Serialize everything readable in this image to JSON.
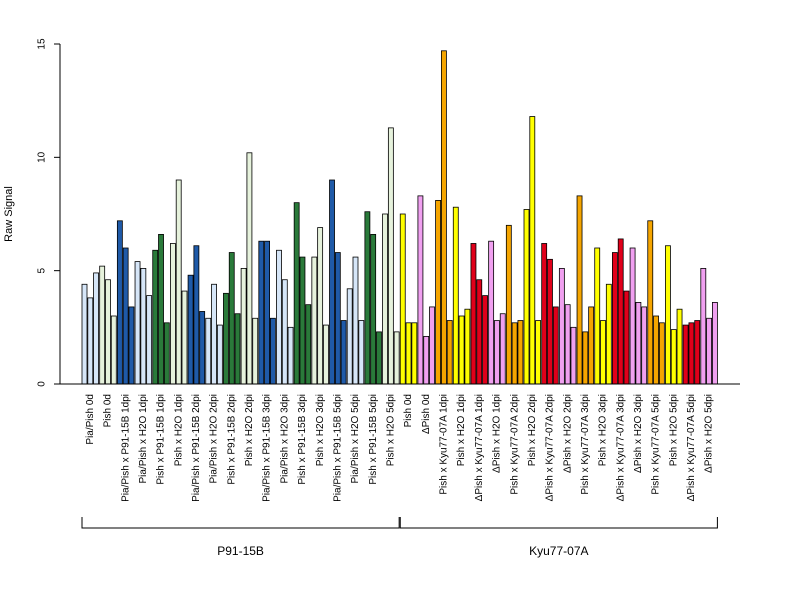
{
  "chart_data": {
    "type": "bar",
    "ylabel": "Raw Signal",
    "ylim": [
      0,
      15
    ],
    "yticks": [
      0,
      5,
      10,
      15
    ],
    "bars_per_category": 3,
    "categories": [
      {
        "label": "Pia/Pish 0d",
        "color": "#d6e6f8",
        "values": [
          4.4,
          3.8,
          4.9
        ]
      },
      {
        "label": "Pish 0d",
        "color": "#e6f2dc",
        "values": [
          5.2,
          4.6,
          3.0
        ]
      },
      {
        "label": "Pia/Pish x P91-15B 1dpi",
        "color": "#1f5aa8",
        "values": [
          7.2,
          6.0,
          3.4
        ]
      },
      {
        "label": "Pia/Pish x H2O 1dpi",
        "color": "#d6e6f8",
        "values": [
          5.4,
          5.1,
          3.9
        ]
      },
      {
        "label": "Pish x P91-15B 1dpi",
        "color": "#2a7a3a",
        "values": [
          5.9,
          6.6,
          2.7
        ]
      },
      {
        "label": "Pish x H2O 1dpi",
        "color": "#e6f2dc",
        "values": [
          6.2,
          9.0,
          4.1
        ]
      },
      {
        "label": "Pia/Pish x P91-15B 2dpi",
        "color": "#1f5aa8",
        "values": [
          4.8,
          6.1,
          3.2
        ]
      },
      {
        "label": "Pia/Pish x H2O 2dpi",
        "color": "#d6e6f8",
        "values": [
          2.9,
          4.4,
          2.6
        ]
      },
      {
        "label": "Pish x P91-15B 2dpi",
        "color": "#2a7a3a",
        "values": [
          4.0,
          5.8,
          3.1
        ]
      },
      {
        "label": "Pish x H2O 2dpi",
        "color": "#e6f2dc",
        "values": [
          5.1,
          10.2,
          2.9
        ]
      },
      {
        "label": "Pia/Pish x P91-15B 3dpi",
        "color": "#1f5aa8",
        "values": [
          6.3,
          6.3,
          2.9
        ]
      },
      {
        "label": "Pia/Pish x H2O 3dpi",
        "color": "#d6e6f8",
        "values": [
          5.9,
          4.6,
          2.5
        ]
      },
      {
        "label": "Pish x P91-15B 3dpi",
        "color": "#2a7a3a",
        "values": [
          8.0,
          5.6,
          3.5
        ]
      },
      {
        "label": "Pish x H2O 3dpi",
        "color": "#e6f2dc",
        "values": [
          5.6,
          6.9,
          2.6
        ]
      },
      {
        "label": "Pia/Pish x P91-15B 5dpi",
        "color": "#1f5aa8",
        "values": [
          9.0,
          5.8,
          2.8
        ]
      },
      {
        "label": "Pia/Pish x H2O 5dpi",
        "color": "#d6e6f8",
        "values": [
          4.2,
          5.6,
          2.8
        ]
      },
      {
        "label": "Pish x P91-15B 5dpi",
        "color": "#2a7a3a",
        "values": [
          7.6,
          6.6,
          2.3
        ]
      },
      {
        "label": "Pish x H2O 5dpi",
        "color": "#e6f2dc",
        "values": [
          7.5,
          11.3,
          2.3
        ]
      },
      {
        "label": "Pish 0d",
        "color": "#ffff00",
        "values": [
          7.5,
          2.7,
          2.7
        ]
      },
      {
        "label": "ΔPish 0d",
        "color": "#f0a0f0",
        "values": [
          8.3,
          2.1,
          3.4
        ]
      },
      {
        "label": "Pish x Kyu77-07A 1dpi",
        "color": "#f5a500",
        "values": [
          8.1,
          14.7,
          2.8
        ]
      },
      {
        "label": "Pish x H2O 1dpi",
        "color": "#ffff00",
        "values": [
          7.8,
          3.0,
          3.3
        ]
      },
      {
        "label": "ΔPish x Kyu77-07A 1dpi",
        "color": "#e0001a",
        "values": [
          6.2,
          4.6,
          3.9
        ]
      },
      {
        "label": "ΔPish x H2O 1dpi",
        "color": "#f0a0f0",
        "values": [
          6.3,
          2.8,
          3.1
        ]
      },
      {
        "label": "Pish x Kyu77-07A 2dpi",
        "color": "#f5a500",
        "values": [
          7.0,
          2.7,
          2.8
        ]
      },
      {
        "label": "Pish x H2O 2dpi",
        "color": "#ffff00",
        "values": [
          7.7,
          11.8,
          2.8
        ]
      },
      {
        "label": "ΔPish x Kyu77-07A 2dpi",
        "color": "#e0001a",
        "values": [
          6.2,
          5.5,
          3.4
        ]
      },
      {
        "label": "ΔPish x H2O 2dpi",
        "color": "#f0a0f0",
        "values": [
          5.1,
          3.5,
          2.5
        ]
      },
      {
        "label": "Pish x Kyu77-07A 3dpi",
        "color": "#f5a500",
        "values": [
          8.3,
          2.3,
          3.4
        ]
      },
      {
        "label": "Pish x H2O 3dpi",
        "color": "#ffff00",
        "values": [
          6.0,
          2.8,
          4.4
        ]
      },
      {
        "label": "ΔPish x Kyu77-07A 3dpi",
        "color": "#e0001a",
        "values": [
          5.8,
          6.4,
          4.1
        ]
      },
      {
        "label": "ΔPish x H2O 3dpi",
        "color": "#f0a0f0",
        "values": [
          6.0,
          3.6,
          3.4
        ]
      },
      {
        "label": "Pish x Kyu77-07A 5dpi",
        "color": "#f5a500",
        "values": [
          7.2,
          3.0,
          2.7
        ]
      },
      {
        "label": "Pish x H2O 5dpi",
        "color": "#ffff00",
        "values": [
          6.1,
          2.4,
          3.3
        ]
      },
      {
        "label": "ΔPish x Kyu77-07A 5dpi",
        "color": "#e0001a",
        "values": [
          2.6,
          2.7,
          2.8
        ]
      },
      {
        "label": "ΔPish x H2O 5dpi",
        "color": "#f0a0f0",
        "values": [
          5.1,
          2.9,
          3.6
        ]
      }
    ],
    "groups": [
      {
        "label": "P91-15B",
        "first": 0,
        "last": 17
      },
      {
        "label": "Kyu77-07A",
        "first": 18,
        "last": 35
      }
    ]
  }
}
